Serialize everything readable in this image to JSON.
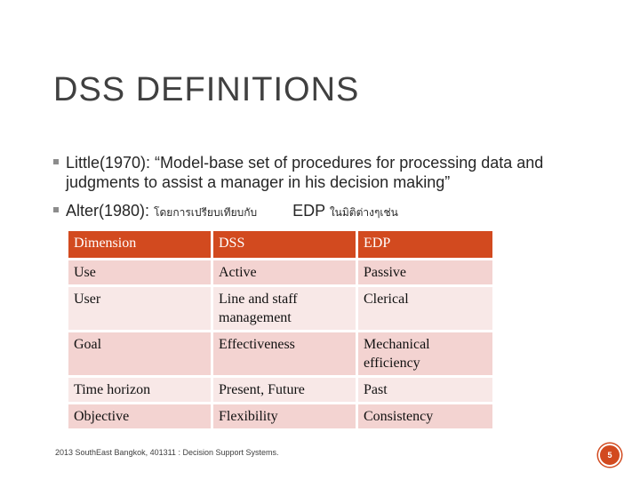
{
  "slide": {
    "title": "DSS DEFINITIONS",
    "bullets": [
      {
        "text": "Little(1970): “Model-base set of procedures for processing data and judgments to assist a manager in his decision making”"
      },
      {
        "prefix": "Alter(1980): ",
        "thai1": "โดยการเปรียบเทียบกับ",
        "mid": "EDP ",
        "thai2": "ในมิติต่างๆเช่น"
      }
    ],
    "table": {
      "headers": [
        "Dimension",
        "DSS",
        "EDP"
      ],
      "rows": [
        [
          "Use",
          "Active",
          "Passive"
        ],
        [
          "User",
          "Line and staff management",
          "Clerical"
        ],
        [
          "Goal",
          "Effectiveness",
          "Mechanical efficiency"
        ],
        [
          "Time horizon",
          "Present, Future",
          "Past"
        ],
        [
          "Objective",
          "Flexibility",
          "Consistency"
        ]
      ]
    },
    "footer": "2013 SouthEast Bangkok, 401311 : Decision Support Systems.",
    "page_number": "5"
  },
  "colors": {
    "accent": "#d24a1f",
    "row_odd": "#f3d3d1",
    "row_even": "#f8e8e7"
  }
}
